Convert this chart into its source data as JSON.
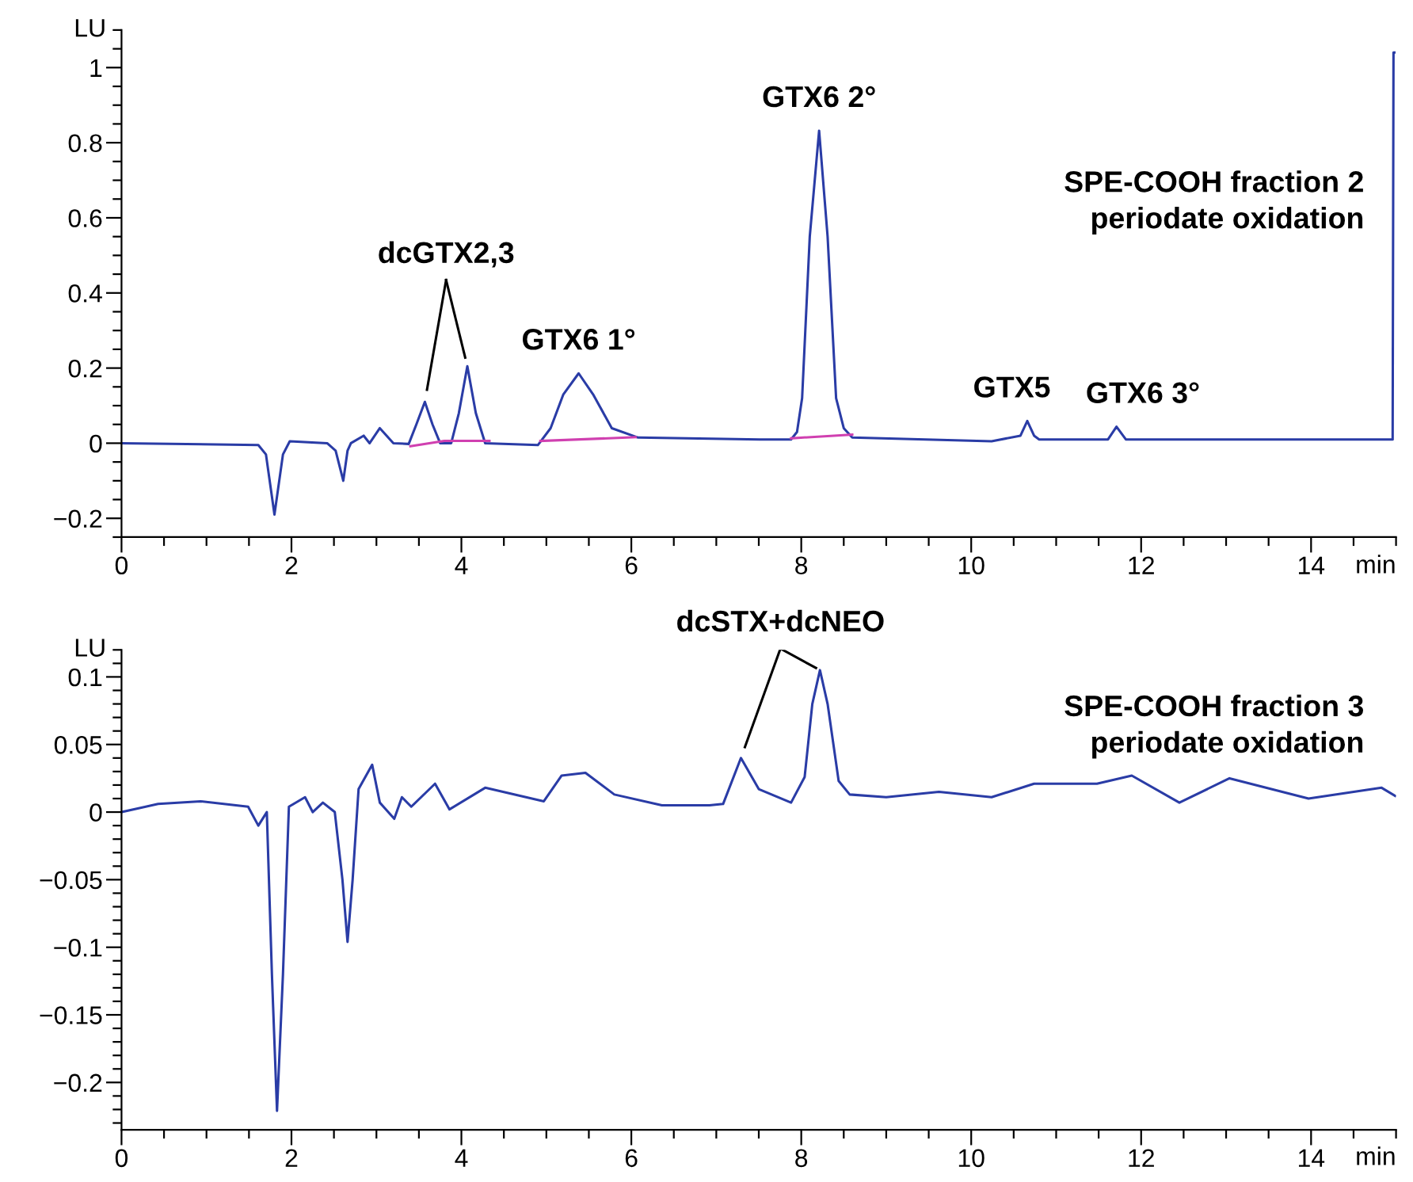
{
  "chart_data": [
    {
      "type": "line",
      "xlabel": "min",
      "ylabel": "LU",
      "xlim": [
        0,
        15
      ],
      "ylim": [
        -0.25,
        1.1
      ],
      "xticks": [
        0,
        {
          "value": 0.5,
          "label": null
        },
        2,
        {
          "value": 1,
          "label": null
        },
        {
          "value": 1.5,
          "label": null
        },
        {
          "value": 2.5,
          "label": null
        },
        {
          "value": 3,
          "label": null
        },
        {
          "value": 3.5,
          "label": null
        },
        4,
        {
          "value": 4.5,
          "label": null
        },
        {
          "value": 5,
          "label": null
        },
        {
          "value": 5.5,
          "label": null
        },
        6,
        {
          "value": 6.5,
          "label": null
        },
        {
          "value": 7,
          "label": null
        },
        {
          "value": 7.5,
          "label": null
        },
        8,
        {
          "value": 8.5,
          "label": null
        },
        {
          "value": 9,
          "label": null
        },
        {
          "value": 9.5,
          "label": null
        },
        10,
        {
          "value": 10.5,
          "label": null
        },
        {
          "value": 11,
          "label": null
        },
        {
          "value": 11.5,
          "label": null
        },
        12,
        {
          "value": 12.5,
          "label": null
        },
        {
          "value": 13,
          "label": null
        },
        {
          "value": 13.5,
          "label": null
        },
        14,
        {
          "value": 14.5,
          "label": null
        },
        {
          "value": 15,
          "label": null
        }
      ],
      "yticks": [
        {
          "value": -0.25,
          "label": null
        },
        {
          "value": -0.2,
          "label": "−0.2"
        },
        {
          "value": -0.15,
          "label": null
        },
        {
          "value": -0.1,
          "label": null
        },
        {
          "value": -0.05,
          "label": null
        },
        0,
        {
          "value": 0.05,
          "label": null
        },
        {
          "value": 0.1,
          "label": null
        },
        {
          "value": 0.15,
          "label": null
        },
        0.2,
        {
          "value": 0.25,
          "label": null
        },
        {
          "value": 0.3,
          "label": null
        },
        {
          "value": 0.35,
          "label": null
        },
        0.4,
        {
          "value": 0.45,
          "label": null
        },
        {
          "value": 0.5,
          "label": null
        },
        {
          "value": 0.55,
          "label": null
        },
        0.6,
        {
          "value": 0.65,
          "label": null
        },
        {
          "value": 0.7,
          "label": null
        },
        {
          "value": 0.75,
          "label": null
        },
        0.8,
        {
          "value": 0.85,
          "label": null
        },
        {
          "value": 0.9,
          "label": null
        },
        {
          "value": 0.95,
          "label": null
        },
        1,
        {
          "value": 1.05,
          "label": null
        },
        {
          "value": 1.1,
          "label": null
        }
      ],
      "grid": false,
      "legend": false,
      "series": [
        {
          "color": "#2a3ca6",
          "x": [
            0,
            1.61,
            1.7,
            1.8,
            1.9,
            1.98,
            2.42,
            2.52,
            2.61,
            2.66,
            2.7,
            2.85,
            2.92,
            3.04,
            3.2,
            3.38,
            3.47,
            3.57,
            3.66,
            3.75,
            3.88,
            3.97,
            4.07,
            4.17,
            4.28,
            4.9,
            5.05,
            5.2,
            5.38,
            5.55,
            5.77,
            6.08,
            7.51,
            7.88,
            7.95,
            8.01,
            8.1,
            8.21,
            8.31,
            8.41,
            8.5,
            8.6,
            10.24,
            10.58,
            10.66,
            10.74,
            10.8,
            11.61,
            11.71,
            11.82,
            14.96,
            14.97,
            14.98
          ],
          "values": [
            0.0,
            -0.005,
            -0.03,
            -0.19,
            -0.03,
            0.005,
            0.0,
            -0.02,
            -0.1,
            -0.02,
            0.0,
            0.02,
            0.0,
            0.04,
            0.0,
            -0.002,
            0.05,
            0.11,
            0.05,
            0.0,
            0.0,
            0.08,
            0.205,
            0.08,
            0.0,
            -0.005,
            0.04,
            0.13,
            0.186,
            0.13,
            0.04,
            0.015,
            0.01,
            0.01,
            0.03,
            0.12,
            0.55,
            0.832,
            0.55,
            0.12,
            0.04,
            0.015,
            0.005,
            0.02,
            0.059,
            0.02,
            0.01,
            0.01,
            0.044,
            0.01,
            0.01,
            1.04,
            1.04
          ]
        },
        {
          "color": "#d040b0",
          "x": [
            3.4,
            3.8,
            4.33
          ],
          "values": [
            -0.008,
            0.006,
            0.006
          ]
        },
        {
          "color": "#d040b0",
          "x": [
            4.93,
            6.05
          ],
          "values": [
            0.006,
            0.016
          ]
        },
        {
          "color": "#d040b0",
          "x": [
            7.88,
            8.6
          ],
          "values": [
            0.013,
            0.023
          ]
        }
      ],
      "annotations": [
        {
          "text": "dcGTX2,3",
          "x": 4.07,
          "y": 0.205
        },
        {
          "text": "GTX6 1°",
          "x": 5.38,
          "y": 0.186
        },
        {
          "text": "GTX6 2°",
          "x": 8.21,
          "y": 0.832
        },
        {
          "text": "GTX5",
          "x": 10.66,
          "y": 0.059
        },
        {
          "text": "GTX6 3°",
          "x": 11.71,
          "y": 0.044
        },
        "SPE-COOH fraction 2\nperiodate oxidation"
      ]
    },
    {
      "type": "line",
      "ylabel": "LU",
      "xlim": [
        0,
        15
      ],
      "ylim": [
        -0.235,
        0.12
      ],
      "xticks": [
        0,
        {
          "value": 0.5,
          "label": null
        },
        {
          "value": 1,
          "label": null
        },
        {
          "value": 1.5,
          "label": null
        },
        2,
        {
          "value": 2.5,
          "label": null
        },
        {
          "value": 3,
          "label": null
        },
        {
          "value": 3.5,
          "label": null
        },
        4,
        {
          "value": 4.5,
          "label": null
        },
        {
          "value": 5,
          "label": null
        },
        {
          "value": 5.5,
          "label": null
        },
        6,
        {
          "value": 6.5,
          "label": null
        },
        {
          "value": 7,
          "label": null
        },
        {
          "value": 7.5,
          "label": null
        },
        8,
        {
          "value": 8.5,
          "label": null
        },
        {
          "value": 9,
          "label": null
        },
        {
          "value": 9.5,
          "label": null
        },
        10,
        {
          "value": 10.5,
          "label": null
        },
        {
          "value": 11,
          "label": null
        },
        {
          "value": 11.5,
          "label": null
        },
        12,
        {
          "value": 12.5,
          "label": null
        },
        {
          "value": 13,
          "label": null
        },
        {
          "value": 13.5,
          "label": null
        },
        14,
        {
          "value": 14.5,
          "label": null
        },
        {
          "value": 15,
          "label": null
        }
      ],
      "xlabel": "min",
      "yticks": [
        {
          "value": -0.23,
          "label": null
        },
        {
          "value": -0.22,
          "label": null
        },
        {
          "value": -0.21,
          "label": null
        },
        {
          "value": -0.2,
          "label": "−0.2"
        },
        {
          "value": -0.19,
          "label": null
        },
        {
          "value": -0.18,
          "label": null
        },
        {
          "value": -0.17,
          "label": null
        },
        {
          "value": -0.16,
          "label": null
        },
        {
          "value": -0.15,
          "label": "−0.15"
        },
        {
          "value": -0.14,
          "label": null
        },
        {
          "value": -0.13,
          "label": null
        },
        {
          "value": -0.12,
          "label": null
        },
        {
          "value": -0.11,
          "label": null
        },
        {
          "value": -0.1,
          "label": "−0.1"
        },
        {
          "value": -0.09,
          "label": null
        },
        {
          "value": -0.08,
          "label": null
        },
        {
          "value": -0.07,
          "label": null
        },
        {
          "value": -0.06,
          "label": null
        },
        {
          "value": -0.05,
          "label": "−0.05"
        },
        {
          "value": -0.04,
          "label": null
        },
        {
          "value": -0.03,
          "label": null
        },
        {
          "value": -0.02,
          "label": null
        },
        {
          "value": -0.01,
          "label": null
        },
        0,
        {
          "value": 0.01,
          "label": null
        },
        {
          "value": 0.02,
          "label": null
        },
        {
          "value": 0.03,
          "label": null
        },
        {
          "value": 0.04,
          "label": null
        },
        0.05,
        {
          "value": 0.06,
          "label": null
        },
        {
          "value": 0.07,
          "label": null
        },
        {
          "value": 0.08,
          "label": null
        },
        {
          "value": 0.09,
          "label": null
        },
        0.1,
        {
          "value": 0.11,
          "label": null
        },
        {
          "value": 0.12,
          "label": null
        }
      ],
      "grid": false,
      "legend": false,
      "series": [
        {
          "color": "#2a3ca6",
          "x": [
            0,
            0.43,
            0.93,
            1.49,
            1.61,
            1.71,
            1.77,
            1.83,
            1.9,
            1.97,
            2.16,
            2.25,
            2.37,
            2.51,
            2.6,
            2.66,
            2.72,
            2.79,
            2.95,
            3.04,
            3.21,
            3.3,
            3.41,
            3.69,
            3.86,
            4.28,
            4.97,
            5.18,
            5.46,
            5.8,
            6.36,
            6.92,
            7.08,
            7.29,
            7.5,
            7.88,
            8.04,
            8.13,
            8.22,
            8.31,
            8.44,
            8.57,
            9.0,
            9.62,
            10.24,
            10.74,
            11.48,
            11.89,
            12.45,
            13.04,
            13.97,
            14.83,
            14.99
          ],
          "values": [
            0.0,
            0.006,
            0.008,
            0.004,
            -0.01,
            0.0,
            -0.12,
            -0.221,
            -0.12,
            0.004,
            0.011,
            0.0,
            0.007,
            0.0,
            -0.05,
            -0.096,
            -0.05,
            0.017,
            0.035,
            0.007,
            -0.005,
            0.011,
            0.004,
            0.021,
            0.002,
            0.018,
            0.008,
            0.027,
            0.029,
            0.013,
            0.005,
            0.005,
            0.006,
            0.04,
            0.017,
            0.007,
            0.026,
            0.08,
            0.105,
            0.08,
            0.023,
            0.013,
            0.011,
            0.015,
            0.011,
            0.021,
            0.021,
            0.027,
            0.007,
            0.025,
            0.01,
            0.018,
            0.012
          ]
        }
      ],
      "annotations": [
        {
          "text": "dcSTX+dcNEO",
          "x": 8.22,
          "y": 0.105
        },
        "SPE-COOH fraction 3\nperiodate oxidation"
      ]
    }
  ]
}
